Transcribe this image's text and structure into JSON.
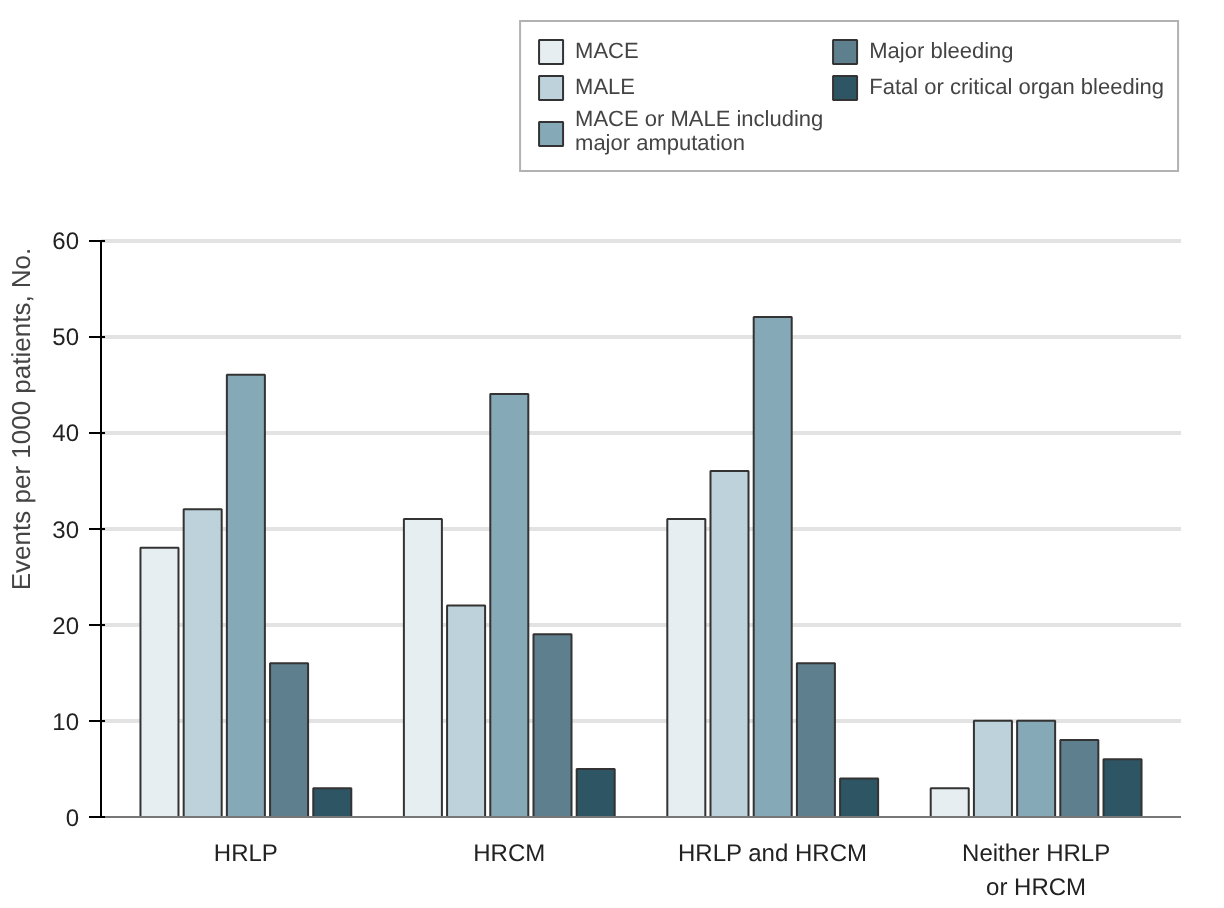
{
  "chart_data": {
    "type": "bar",
    "ylabel": "Events per 1000 patients, No.",
    "categories": [
      "HRLP",
      "HRCM",
      "HRLP and HRCM",
      "Neither HRLP\nor HRCM"
    ],
    "series": [
      {
        "name": "MACE",
        "color": "#e6eef1",
        "values": [
          28,
          31,
          31,
          3
        ]
      },
      {
        "name": "MALE",
        "color": "#bdd2db",
        "values": [
          32,
          22,
          36,
          10
        ]
      },
      {
        "name": "MACE or MALE including\nmajor amputation",
        "color": "#86a9b7",
        "values": [
          46,
          44,
          52,
          10
        ]
      },
      {
        "name": "Major bleeding",
        "color": "#5e7f8d",
        "values": [
          16,
          19,
          16,
          8
        ]
      },
      {
        "name": "Fatal or critical organ bleeding",
        "color": "#2e5563",
        "values": [
          3,
          5,
          4,
          6
        ]
      }
    ],
    "ylim": [
      0,
      60
    ],
    "yticks": [
      0,
      10,
      20,
      30,
      40,
      50,
      60
    ],
    "grid": "y",
    "legend": "top right"
  }
}
